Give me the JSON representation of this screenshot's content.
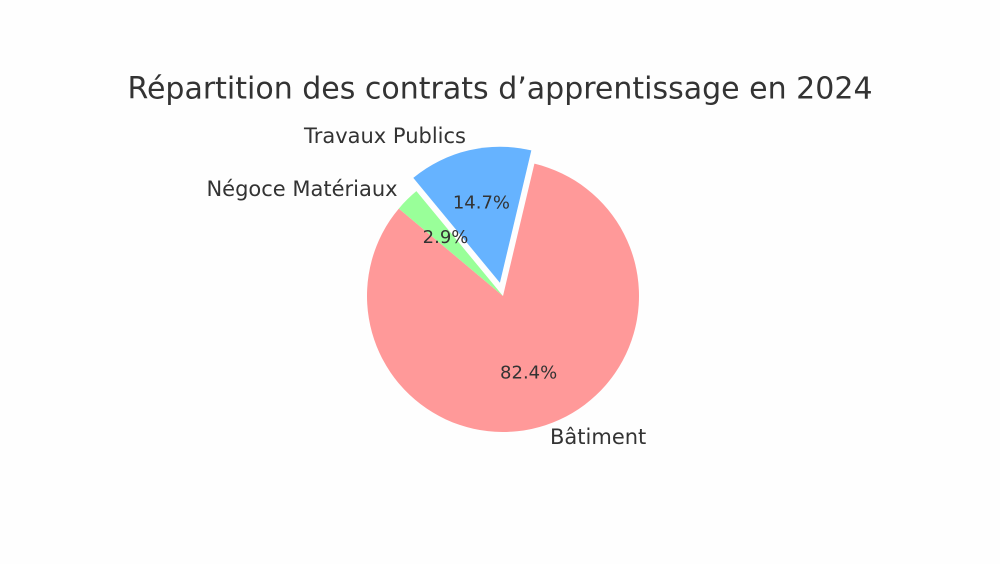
{
  "chart_data": {
    "type": "pie",
    "title": "Répartition des contrats d’apprentissage en 2024",
    "categories": [
      "Bâtiment",
      "Travaux Publics",
      "Négoce Matériaux"
    ],
    "values": [
      82.4,
      14.7,
      2.9
    ],
    "value_labels": [
      "82.4%",
      "14.7%",
      "2.9%"
    ],
    "colors": [
      "#ff9999",
      "#66b3ff",
      "#99ff99"
    ],
    "explode": [
      0,
      0.1,
      0
    ],
    "startangle": 140
  }
}
